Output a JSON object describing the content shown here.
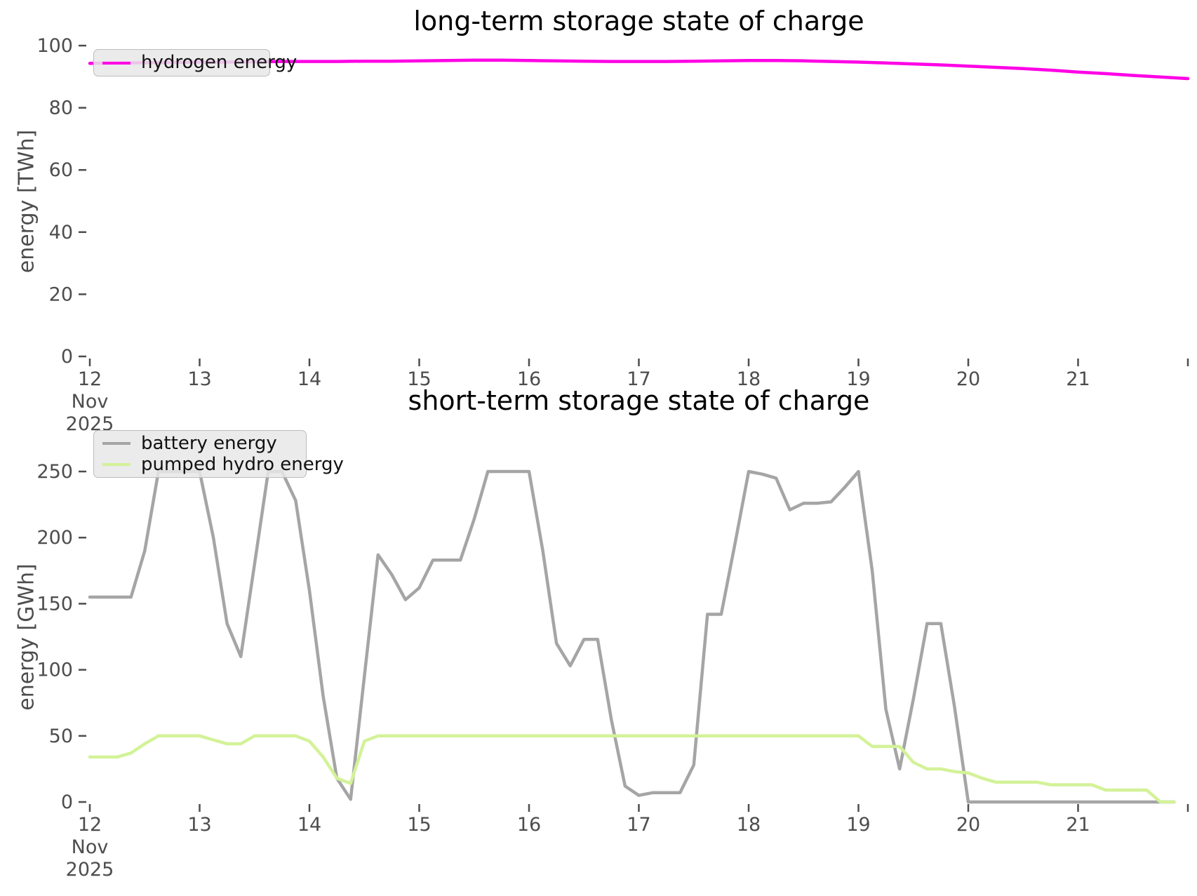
{
  "figure": {
    "background": "#ffffff",
    "grid": false,
    "spines": "none"
  },
  "colors": {
    "hydrogen": "#ff00e6",
    "battery": "#a5a5a5",
    "pumped_hydro": "#d3f298",
    "tick_text": "#4d4d4d",
    "title_text": "#000000",
    "legend_bg": "#e7e7e7",
    "legend_border": "#bdbdbd"
  },
  "chart_data": [
    {
      "type": "line",
      "title": "long-term storage state of charge",
      "ylabel": "energy [TWh]",
      "yticks": [
        0,
        20,
        40,
        60,
        80,
        100
      ],
      "ylim": [
        0,
        100
      ],
      "xticks": [
        "12",
        "13",
        "14",
        "15",
        "16",
        "17",
        "18",
        "19",
        "20",
        "21"
      ],
      "x_date_lines": [
        "Nov",
        "2025"
      ],
      "x_unit": "days since 2025-11-12 00:00",
      "xlim": [
        0,
        10
      ],
      "legend_loc": "upper left",
      "series": [
        {
          "name": "hydrogen energy",
          "color": "#ff00e6",
          "x_start": 0,
          "x_step": 0.25,
          "values": [
            94.3,
            94.4,
            94.5,
            94.6,
            94.7,
            94.7,
            94.8,
            94.9,
            94.9,
            94.9,
            95.0,
            95.0,
            95.1,
            95.2,
            95.3,
            95.3,
            95.2,
            95.1,
            95.0,
            94.9,
            94.9,
            94.9,
            95.0,
            95.1,
            95.2,
            95.2,
            95.1,
            94.9,
            94.7,
            94.4,
            94.1,
            93.8,
            93.4,
            93.0,
            92.6,
            92.1,
            91.5,
            91.0,
            90.4,
            89.9,
            89.4
          ]
        }
      ]
    },
    {
      "type": "line",
      "title": "short-term storage state of charge",
      "ylabel": "energy [GWh]",
      "yticks": [
        0,
        50,
        100,
        150,
        200,
        250
      ],
      "ylim": [
        0,
        250
      ],
      "xticks": [
        "12",
        "13",
        "14",
        "15",
        "16",
        "17",
        "18",
        "19",
        "20",
        "21"
      ],
      "x_date_lines": [
        "Nov",
        "2025"
      ],
      "x_unit": "days since 2025-11-12 00:00",
      "xlim": [
        0,
        10
      ],
      "legend_loc": "upper left",
      "series": [
        {
          "name": "battery energy",
          "color": "#a5a5a5",
          "x_start": 0,
          "x_step": 0.125,
          "values": [
            155,
            155,
            155,
            155,
            190,
            250,
            250,
            250,
            250,
            200,
            135,
            110,
            180,
            250,
            250,
            228,
            160,
            80,
            18,
            2,
            95,
            187,
            172,
            153,
            162,
            183,
            183,
            183,
            214,
            250,
            250,
            250,
            250,
            190,
            120,
            103,
            123,
            123,
            62,
            12,
            5,
            7,
            7,
            7,
            28,
            142,
            142,
            195,
            250,
            248,
            245,
            221,
            226,
            226,
            227,
            238,
            250,
            175,
            70,
            25,
            78,
            135,
            135,
            72,
            0,
            0,
            0,
            0,
            0,
            0,
            0,
            0,
            0,
            0,
            0,
            0,
            0,
            0,
            0,
            0
          ]
        },
        {
          "name": "pumped hydro energy",
          "color": "#d3f298",
          "x_start": 0,
          "x_step": 0.125,
          "values": [
            34,
            34,
            34,
            37,
            44,
            50,
            50,
            50,
            50,
            47,
            44,
            44,
            50,
            50,
            50,
            50,
            46,
            34,
            18,
            14,
            46,
            50,
            50,
            50,
            50,
            50,
            50,
            50,
            50,
            50,
            50,
            50,
            50,
            50,
            50,
            50,
            50,
            50,
            50,
            50,
            50,
            50,
            50,
            50,
            50,
            50,
            50,
            50,
            50,
            50,
            50,
            50,
            50,
            50,
            50,
            50,
            50,
            42,
            42,
            42,
            30,
            25,
            25,
            23,
            22,
            18,
            15,
            15,
            15,
            15,
            13,
            13,
            13,
            13,
            9,
            9,
            9,
            9,
            0,
            0
          ]
        }
      ]
    }
  ]
}
